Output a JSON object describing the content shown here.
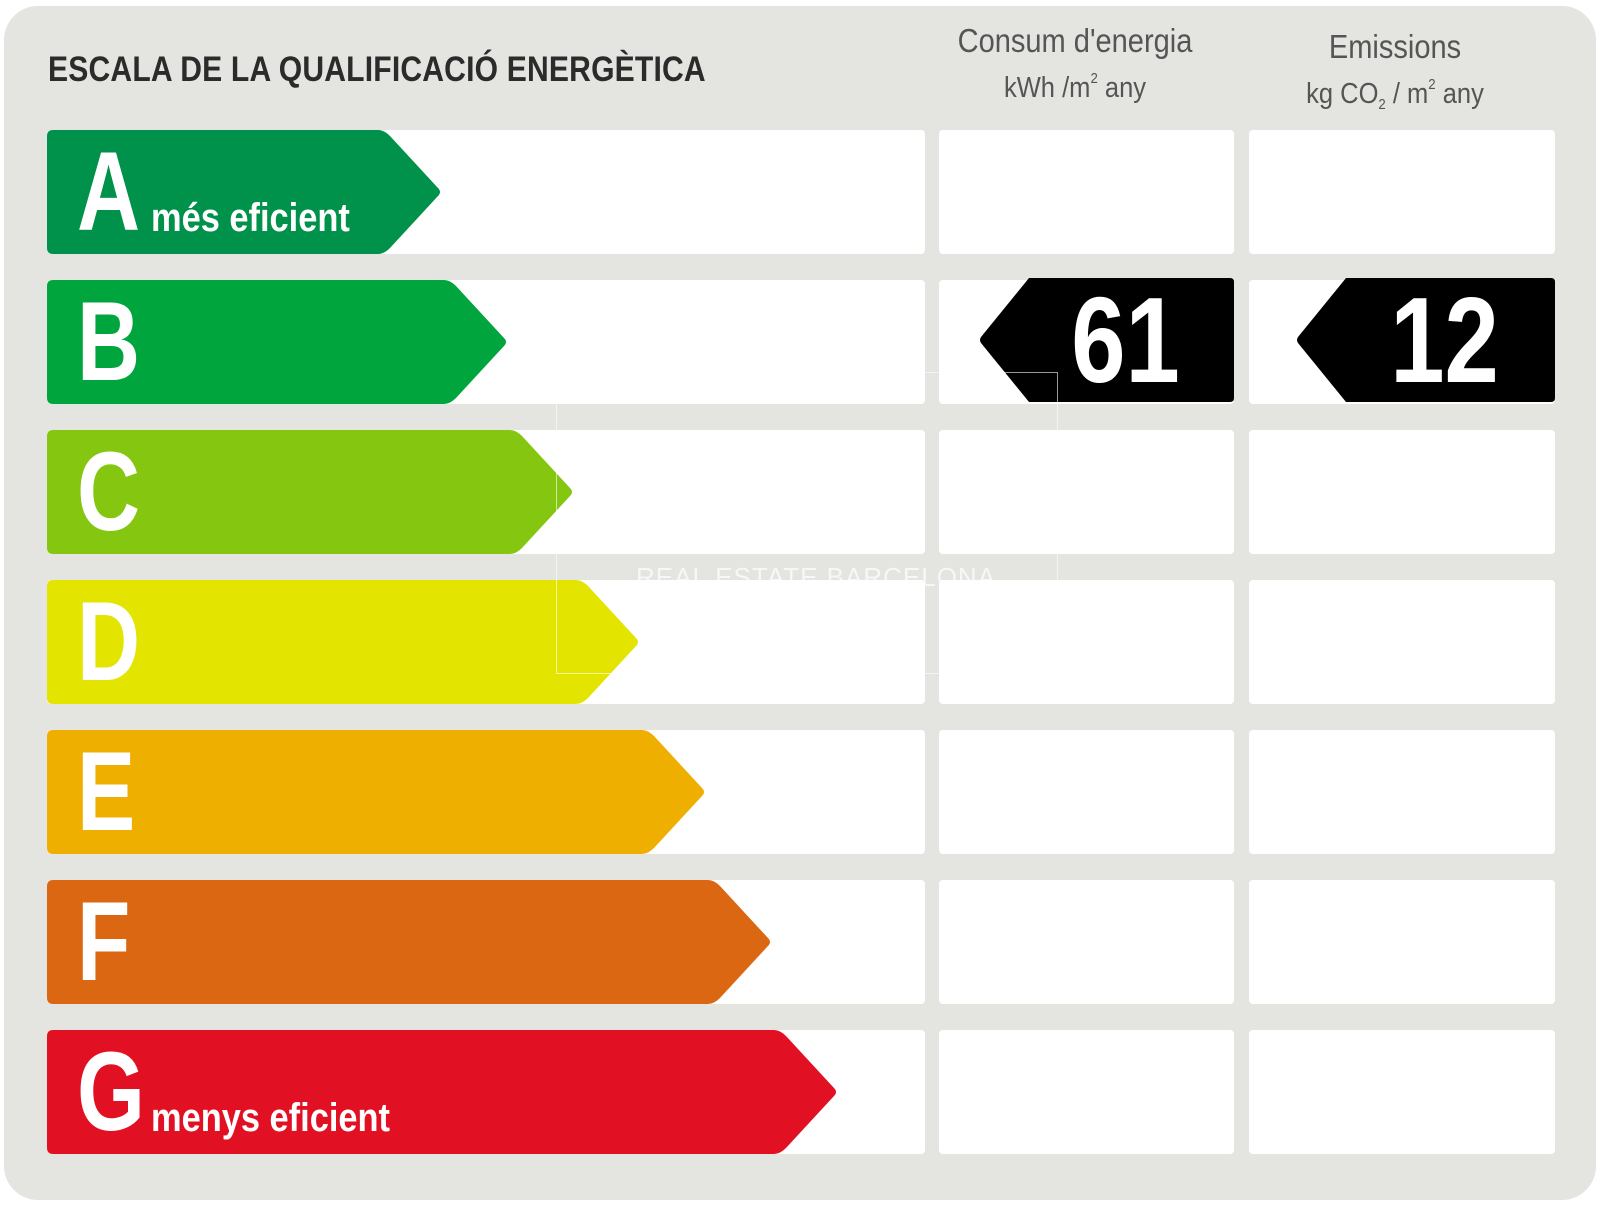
{
  "title": "ESCALA DE LA QUALIFICACIÓ ENERGÈTICA",
  "columns": {
    "consum": {
      "label": "Consum d'energia",
      "unit_pre": "kWh /m",
      "unit_sup": "2",
      "unit_post": " any"
    },
    "emissions": {
      "label": "Emissions",
      "unit_pre": "kg CO",
      "unit_sub": "2",
      "unit_mid": " / m",
      "unit_sup": "2",
      "unit_post": " any"
    }
  },
  "classes": [
    {
      "letter": "A",
      "label": "més eficient",
      "color": "#00914a"
    },
    {
      "letter": "B",
      "label": "",
      "color": "#00a63d"
    },
    {
      "letter": "C",
      "label": "",
      "color": "#84c610"
    },
    {
      "letter": "D",
      "label": "",
      "color": "#e3e400"
    },
    {
      "letter": "E",
      "label": "",
      "color": "#efaf00"
    },
    {
      "letter": "F",
      "label": "",
      "color": "#dc6712"
    },
    {
      "letter": "G",
      "label": "menys eficient",
      "color": "#e21023"
    }
  ],
  "rating": {
    "class": "B",
    "consum_value": "61",
    "emissions_value": "12"
  },
  "watermark": "REAL ESTATE BARCELONA"
}
